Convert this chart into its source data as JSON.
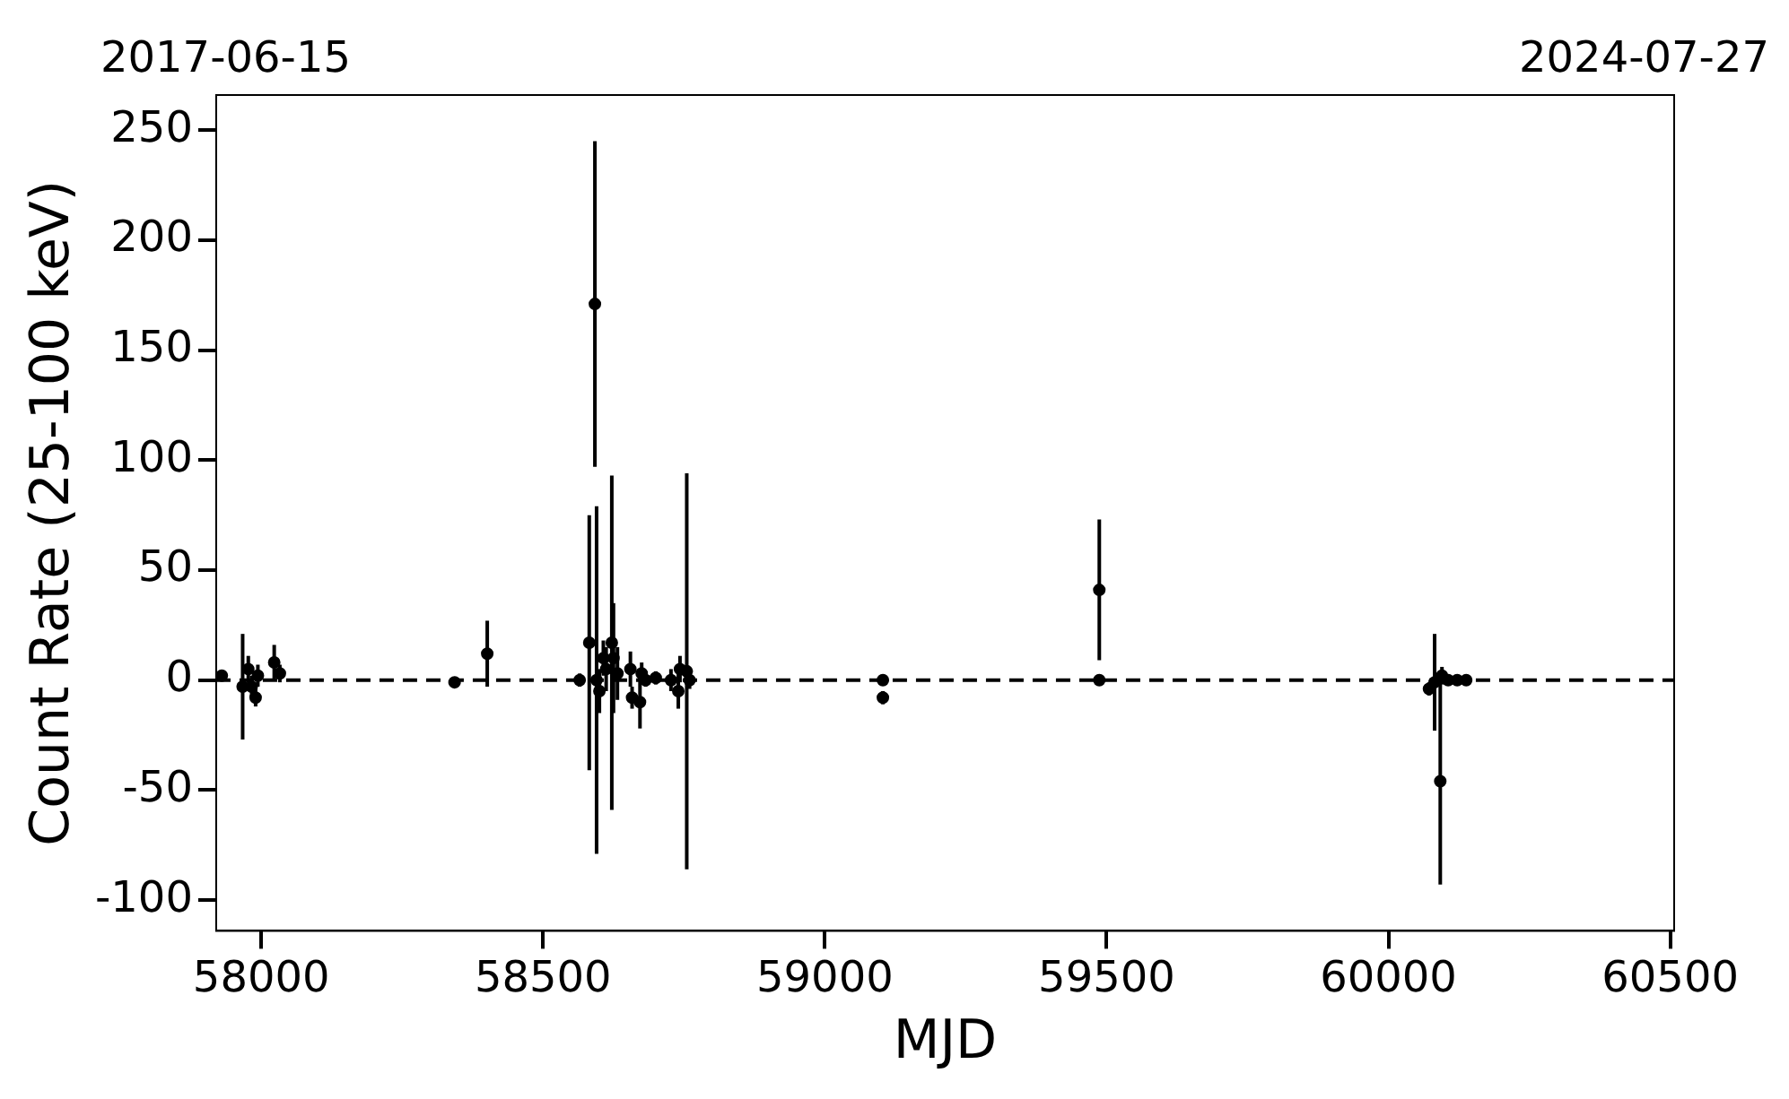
{
  "chart_data": {
    "type": "scatter",
    "xlabel": "MJD",
    "ylabel": "Count Rate (25-100 keV)",
    "annotations": [
      "2017-06-15",
      "2024-07-27"
    ],
    "xlim": [
      57920,
      60507
    ],
    "xticks": [
      58000,
      58500,
      59000,
      59500,
      60000,
      60500
    ],
    "ylim": [
      -114,
      266
    ],
    "yticks": [
      -100,
      -50,
      0,
      50,
      100,
      150,
      200,
      250
    ],
    "grid": false,
    "legend": false,
    "marker": "circle",
    "ref_lines": [
      {
        "axis": "y",
        "value": 0,
        "color": "#000000",
        "line_style": "dashed"
      }
    ],
    "series": [
      {
        "color": "#000000",
        "x": [
          57930,
          57967,
          57977,
          57983,
          57990,
          57994,
          58023,
          58026,
          58033,
          58341,
          58343,
          58401,
          58582,
          58592,
          58595,
          58565,
          58600,
          58607,
          58612,
          58622,
          58625,
          58632,
          58655,
          58658,
          58665,
          58672,
          58675,
          58682,
          58700,
          58727,
          58740,
          58743,
          58755,
          58760,
          59103,
          59103,
          59487,
          59487,
          60072,
          60082,
          60092,
          60095,
          60106,
          60122,
          60138
        ],
        "values": [
          2,
          -3,
          5,
          -3,
          -8,
          2,
          8,
          null,
          3,
          null,
          -1,
          12,
          17,
          171,
          0,
          0,
          -5,
          10,
          5,
          17,
          10,
          3,
          5,
          -8,
          null,
          -10,
          3,
          0,
          1,
          0,
          -5,
          5,
          4,
          0,
          0,
          -8,
          41,
          0,
          -4,
          -1,
          -46,
          2,
          0,
          0,
          0
        ],
        "errors": [
          2,
          24,
          6,
          5,
          4,
          5,
          8,
          null,
          4,
          null,
          2,
          15,
          58,
          74,
          79,
          3,
          10,
          8,
          10,
          76,
          25,
          12,
          8,
          5,
          null,
          12,
          5,
          3,
          3,
          5,
          8,
          6,
          90,
          4,
          1,
          3,
          32,
          1,
          3,
          22,
          47,
          4,
          2,
          1,
          1
        ]
      }
    ]
  }
}
